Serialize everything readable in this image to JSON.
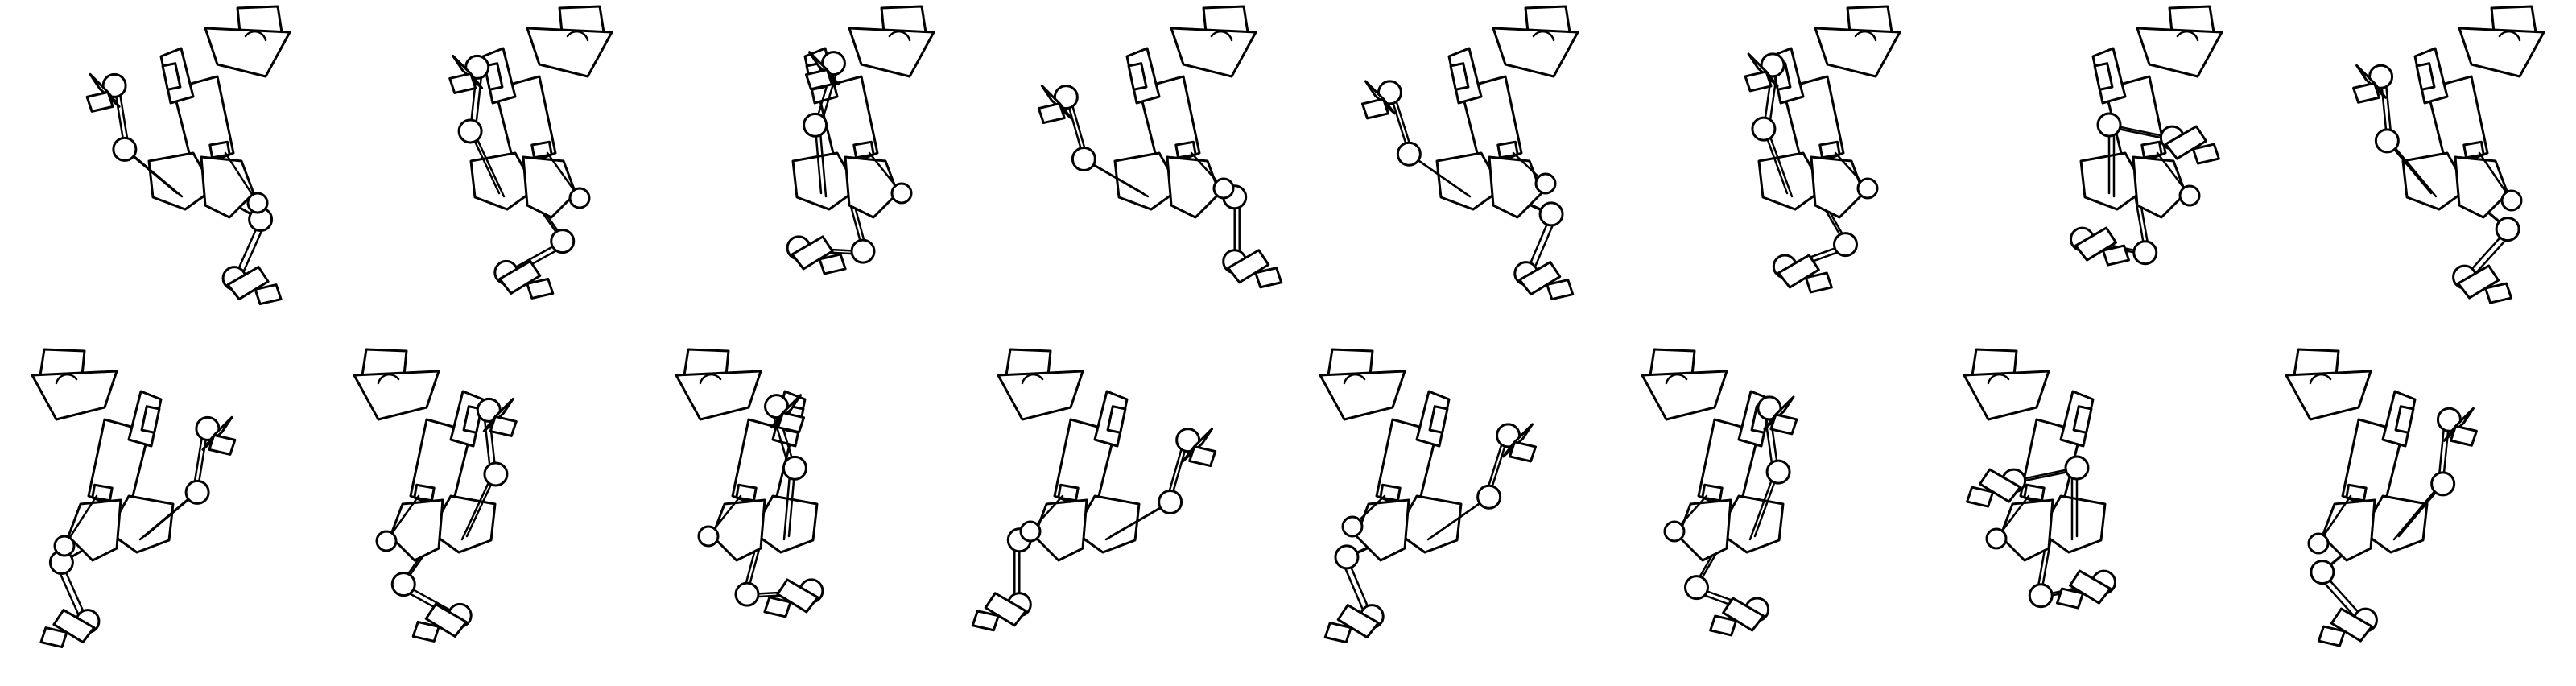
{
  "sprite_sheet": {
    "background": "#ffffff",
    "stroke_color": "#000000",
    "fill_color": "#ffffff",
    "rows": 2,
    "columns": 8,
    "frame_count": 16,
    "frames": [
      {
        "row": 0,
        "col": 0,
        "row_name": "running-right"
      },
      {
        "row": 0,
        "col": 1,
        "row_name": "running-right"
      },
      {
        "row": 0,
        "col": 2,
        "row_name": "running-right"
      },
      {
        "row": 0,
        "col": 3,
        "row_name": "running-right"
      },
      {
        "row": 0,
        "col": 4,
        "row_name": "running-right"
      },
      {
        "row": 0,
        "col": 5,
        "row_name": "running-right"
      },
      {
        "row": 0,
        "col": 6,
        "row_name": "running-right"
      },
      {
        "row": 0,
        "col": 7,
        "row_name": "running-right"
      },
      {
        "row": 1,
        "col": 0,
        "row_name": "running-left"
      },
      {
        "row": 1,
        "col": 1,
        "row_name": "running-left"
      },
      {
        "row": 1,
        "col": 2,
        "row_name": "running-left"
      },
      {
        "row": 1,
        "col": 3,
        "row_name": "running-left"
      },
      {
        "row": 1,
        "col": 4,
        "row_name": "running-left"
      },
      {
        "row": 1,
        "col": 5,
        "row_name": "running-left"
      },
      {
        "row": 1,
        "col": 6,
        "row_name": "running-left"
      },
      {
        "row": 1,
        "col": 7,
        "row_name": "running-left"
      }
    ]
  }
}
